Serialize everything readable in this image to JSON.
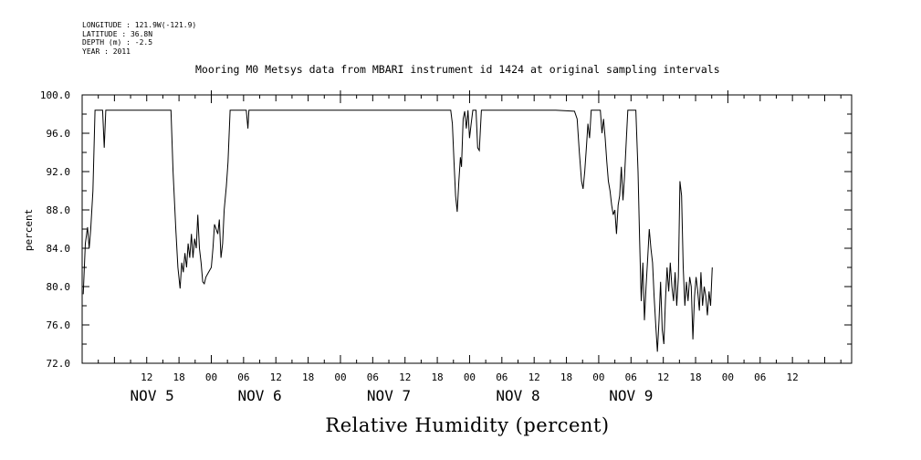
{
  "header": {
    "lines": [
      "LONGITUDE : 121.9W(-121.9)",
      "LATITUDE : 36.8N",
      "DEPTH (m) : -2.5",
      "YEAR : 2011"
    ],
    "title": "Mooring M0 Metsys data from MBARI instrument id 1424 at original sampling intervals"
  },
  "chart_data": {
    "type": "line",
    "title": "Mooring M0 Metsys data from MBARI instrument id 1424 at original sampling intervals",
    "xlabel": "Relative Humidity (percent)",
    "ylabel": "percent",
    "ylim": [
      72.0,
      100.0
    ],
    "yticks": [
      "72.0",
      "76.0",
      "80.0",
      "84.0",
      "88.0",
      "92.0",
      "96.0",
      "100.0"
    ],
    "xlim_hours": [
      0,
      143
    ],
    "x_unit": "hours from Nov 5 00:00, 2011",
    "xticks": [
      {
        "hour": 12,
        "label": "12"
      },
      {
        "hour": 18,
        "label": "18"
      },
      {
        "hour": 24,
        "label": "00"
      },
      {
        "hour": 30,
        "label": "06"
      },
      {
        "hour": 36,
        "label": "12"
      },
      {
        "hour": 42,
        "label": "18"
      },
      {
        "hour": 48,
        "label": "00"
      },
      {
        "hour": 54,
        "label": "06"
      },
      {
        "hour": 60,
        "label": "12"
      },
      {
        "hour": 66,
        "label": "18"
      },
      {
        "hour": 72,
        "label": "00"
      },
      {
        "hour": 78,
        "label": "06"
      },
      {
        "hour": 84,
        "label": "12"
      },
      {
        "hour": 90,
        "label": "18"
      },
      {
        "hour": 96,
        "label": "00"
      },
      {
        "hour": 102,
        "label": "06"
      },
      {
        "hour": 108,
        "label": "12"
      },
      {
        "hour": 114,
        "label": "18"
      },
      {
        "hour": 120,
        "label": "00"
      },
      {
        "hour": 126,
        "label": "06"
      },
      {
        "hour": 132,
        "label": "12"
      }
    ],
    "day_labels": [
      {
        "hour": 13,
        "label": "NOV  5"
      },
      {
        "hour": 33,
        "label": "NOV  6"
      },
      {
        "hour": 57,
        "label": "NOV  7"
      },
      {
        "hour": 81,
        "label": "NOV  8"
      },
      {
        "hour": 102,
        "label": "NOV  9"
      }
    ],
    "series": [
      {
        "values": [
          [
            0.2,
            79.2
          ],
          [
            0.6,
            84.5
          ],
          [
            1.0,
            86.2
          ],
          [
            1.3,
            84.0
          ],
          [
            1.6,
            86.0
          ],
          [
            2.0,
            90.0
          ],
          [
            2.4,
            98.4
          ],
          [
            3.2,
            98.4
          ],
          [
            3.8,
            98.4
          ],
          [
            4.1,
            94.5
          ],
          [
            4.4,
            98.4
          ],
          [
            5.5,
            98.4
          ],
          [
            6.5,
            98.4
          ],
          [
            8,
            98.4
          ],
          [
            10,
            98.4
          ],
          [
            12,
            98.4
          ],
          [
            13,
            98.4
          ],
          [
            15,
            98.4
          ],
          [
            16.5,
            98.4
          ],
          [
            16.9,
            92.0
          ],
          [
            17.4,
            86.0
          ],
          [
            17.8,
            82.0
          ],
          [
            18.2,
            79.8
          ],
          [
            18.5,
            82.5
          ],
          [
            18.8,
            81.5
          ],
          [
            19.1,
            83.5
          ],
          [
            19.4,
            82.0
          ],
          [
            19.7,
            84.5
          ],
          [
            20.0,
            83.0
          ],
          [
            20.3,
            85.5
          ],
          [
            20.6,
            83.0
          ],
          [
            20.9,
            85.0
          ],
          [
            21.2,
            84.0
          ],
          [
            21.5,
            87.5
          ],
          [
            21.8,
            84.0
          ],
          [
            22.1,
            82.5
          ],
          [
            22.4,
            80.5
          ],
          [
            22.7,
            80.3
          ],
          [
            23.0,
            81.0
          ],
          [
            23.5,
            81.5
          ],
          [
            24.0,
            82.0
          ],
          [
            24.3,
            84.0
          ],
          [
            24.6,
            86.5
          ],
          [
            24.9,
            86.0
          ],
          [
            25.2,
            85.5
          ],
          [
            25.5,
            87.0
          ],
          [
            25.8,
            83.0
          ],
          [
            26.1,
            84.5
          ],
          [
            26.4,
            88.0
          ],
          [
            26.8,
            90.5
          ],
          [
            27.1,
            93.0
          ],
          [
            27.5,
            98.4
          ],
          [
            28,
            98.4
          ],
          [
            29,
            98.4
          ],
          [
            30,
            98.4
          ],
          [
            30.5,
            98.4
          ],
          [
            30.8,
            96.5
          ],
          [
            31.0,
            98.4
          ],
          [
            32,
            98.4
          ],
          [
            36,
            98.4
          ],
          [
            40,
            98.4
          ],
          [
            44,
            98.4
          ],
          [
            48,
            98.4
          ],
          [
            52,
            98.4
          ],
          [
            56,
            98.4
          ],
          [
            60,
            98.4
          ],
          [
            64,
            98.4
          ],
          [
            68.5,
            98.4
          ],
          [
            68.8,
            97.0
          ],
          [
            69.1,
            93.0
          ],
          [
            69.4,
            89.5
          ],
          [
            69.7,
            87.8
          ],
          [
            70.0,
            91.0
          ],
          [
            70.3,
            93.5
          ],
          [
            70.5,
            92.5
          ],
          [
            70.8,
            97.5
          ],
          [
            71.1,
            98.3
          ],
          [
            71.4,
            96.5
          ],
          [
            71.7,
            98.4
          ],
          [
            72.0,
            95.5
          ],
          [
            72.3,
            97.0
          ],
          [
            72.6,
            98.4
          ],
          [
            73.2,
            98.4
          ],
          [
            73.5,
            94.5
          ],
          [
            73.8,
            94.2
          ],
          [
            74.2,
            98.4
          ],
          [
            76,
            98.4
          ],
          [
            80,
            98.4
          ],
          [
            84,
            98.4
          ],
          [
            88,
            98.4
          ],
          [
            91.5,
            98.3
          ],
          [
            92.0,
            97.5
          ],
          [
            92.4,
            94.0
          ],
          [
            92.8,
            91.0
          ],
          [
            93.1,
            90.2
          ],
          [
            93.4,
            92.0
          ],
          [
            93.7,
            94.5
          ],
          [
            94.0,
            97.0
          ],
          [
            94.3,
            95.5
          ],
          [
            94.6,
            98.4
          ],
          [
            95.5,
            98.4
          ],
          [
            96.3,
            98.4
          ],
          [
            96.6,
            96.0
          ],
          [
            96.9,
            97.5
          ],
          [
            97.2,
            95.5
          ],
          [
            97.5,
            93.0
          ],
          [
            97.8,
            91.0
          ],
          [
            98.1,
            90.0
          ],
          [
            98.4,
            88.5
          ],
          [
            98.7,
            87.5
          ],
          [
            99.0,
            88.0
          ],
          [
            99.3,
            85.5
          ],
          [
            99.6,
            88.5
          ],
          [
            99.9,
            89.5
          ],
          [
            100.2,
            92.5
          ],
          [
            100.5,
            89.0
          ],
          [
            100.8,
            91.5
          ],
          [
            101.1,
            95.0
          ],
          [
            101.4,
            98.4
          ],
          [
            102.5,
            98.4
          ],
          [
            102.9,
            98.4
          ],
          [
            103.3,
            92.0
          ],
          [
            103.6,
            85.0
          ],
          [
            103.9,
            78.5
          ],
          [
            104.2,
            82.5
          ],
          [
            104.5,
            76.5
          ],
          [
            104.8,
            80.0
          ],
          [
            105.1,
            83.0
          ],
          [
            105.4,
            86.0
          ],
          [
            105.7,
            84.0
          ],
          [
            106.0,
            82.5
          ],
          [
            106.3,
            79.0
          ],
          [
            106.6,
            76.0
          ],
          [
            106.9,
            73.2
          ],
          [
            107.2,
            76.5
          ],
          [
            107.5,
            80.5
          ],
          [
            107.8,
            75.5
          ],
          [
            108.1,
            74.0
          ],
          [
            108.4,
            78.5
          ],
          [
            108.7,
            82.0
          ],
          [
            109.0,
            79.5
          ],
          [
            109.3,
            82.5
          ],
          [
            109.6,
            80.0
          ],
          [
            109.9,
            78.5
          ],
          [
            110.2,
            81.5
          ],
          [
            110.5,
            78.0
          ],
          [
            110.8,
            81.0
          ],
          [
            111.1,
            91.0
          ],
          [
            111.4,
            89.5
          ],
          [
            111.7,
            82.0
          ],
          [
            112.0,
            78.0
          ],
          [
            112.3,
            80.5
          ],
          [
            112.6,
            78.5
          ],
          [
            112.9,
            81.0
          ],
          [
            113.2,
            80.0
          ],
          [
            113.5,
            74.5
          ],
          [
            113.8,
            79.0
          ],
          [
            114.1,
            81.0
          ],
          [
            114.4,
            79.5
          ],
          [
            114.7,
            77.5
          ],
          [
            115.0,
            81.5
          ],
          [
            115.3,
            78.0
          ],
          [
            115.6,
            80.0
          ],
          [
            115.9,
            79.0
          ],
          [
            116.2,
            77.0
          ],
          [
            116.5,
            79.5
          ],
          [
            116.8,
            78.0
          ],
          [
            117.1,
            82.0
          ]
        ]
      }
    ]
  }
}
